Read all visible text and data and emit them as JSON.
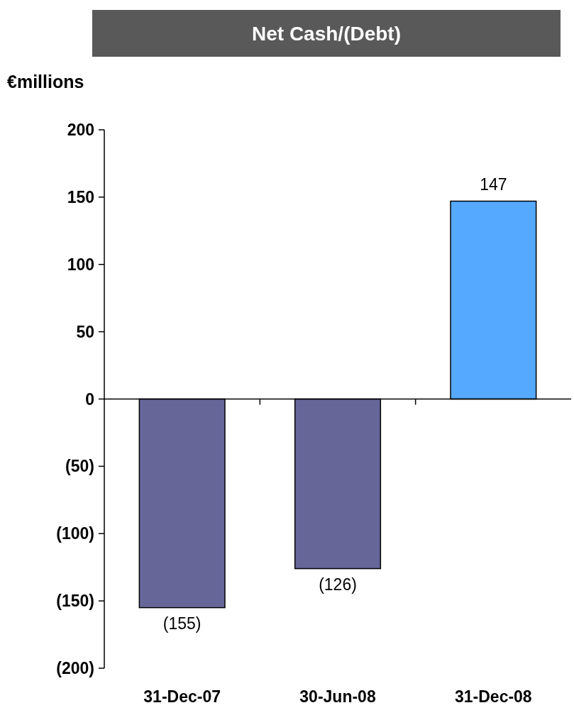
{
  "chart_data": {
    "type": "bar",
    "title": "Net Cash/(Debt)",
    "ylabel": "€millions",
    "categories": [
      "31-Dec-07",
      "30-Jun-08",
      "31-Dec-08"
    ],
    "values": [
      -155,
      -126,
      147
    ],
    "colors": [
      "#666699",
      "#666699",
      "#55aaff"
    ],
    "value_labels": [
      "(155)",
      "(126)",
      "147"
    ],
    "ylim": [
      -200,
      200
    ],
    "yticks": [
      {
        "value": -200,
        "label": "(200)"
      },
      {
        "value": -150,
        "label": "(150)"
      },
      {
        "value": -100,
        "label": "(100)"
      },
      {
        "value": -50,
        "label": "(50)"
      },
      0,
      50,
      100,
      150,
      200
    ]
  }
}
